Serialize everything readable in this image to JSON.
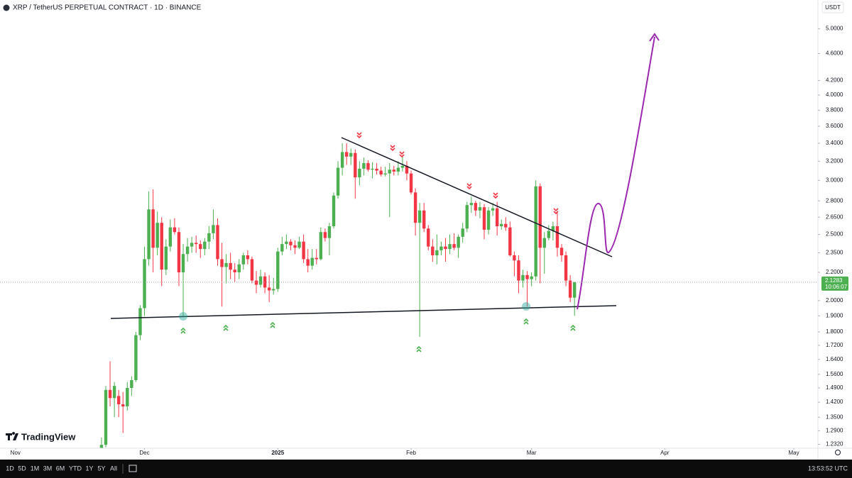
{
  "header": {
    "symbol": "XRP / TetherUS PERPETUAL CONTRACT · 1D · BINANCE",
    "currency": "USDT",
    "logo": "TradingView"
  },
  "toolbar": {
    "ranges": [
      "1D",
      "5D",
      "1M",
      "3M",
      "6M",
      "YTD",
      "1Y",
      "5Y",
      "All"
    ],
    "clock": "13:53:52 UTC"
  },
  "chart_data": {
    "type": "candlestick",
    "log": true,
    "grid": false,
    "up_color": "#4caf50",
    "down_color": "#f23645",
    "xlim": [
      -23.6,
      166.6
    ],
    "xticks": [
      {
        "value": -20,
        "label": "Nov"
      },
      {
        "value": 10,
        "label": "Dec"
      },
      {
        "value": 41,
        "label": "2025"
      },
      {
        "value": 72,
        "label": "Feb"
      },
      {
        "value": 100,
        "label": "Mar"
      },
      {
        "value": 131,
        "label": "Apr"
      },
      {
        "value": 161,
        "label": "May"
      }
    ],
    "ylim": [
      1.216,
      5.51
    ],
    "yticks": [
      {
        "value": 5,
        "label": "5.0000"
      },
      {
        "value": 4.6,
        "label": "4.6000"
      },
      {
        "value": 4.2,
        "label": "4.2000"
      },
      {
        "value": 4,
        "label": "4.0000"
      },
      {
        "value": 3.8,
        "label": "3.8000"
      },
      {
        "value": 3.6,
        "label": "3.6000"
      },
      {
        "value": 3.4,
        "label": "3.4000"
      },
      {
        "value": 3.2,
        "label": "3.2000"
      },
      {
        "value": 3,
        "label": "3.0000"
      },
      {
        "value": 2.8,
        "label": "2.8000"
      },
      {
        "value": 2.65,
        "label": "2.6500"
      },
      {
        "value": 2.5,
        "label": "2.5000"
      },
      {
        "value": 2.35,
        "label": "2.3500"
      },
      {
        "value": 2.2,
        "label": "2.2000"
      },
      {
        "value": 2,
        "label": "2.0000"
      },
      {
        "value": 1.9,
        "label": "1.9000"
      },
      {
        "value": 1.8,
        "label": "1.8000"
      },
      {
        "value": 1.72,
        "label": "1.7200"
      },
      {
        "value": 1.64,
        "label": "1.6400"
      },
      {
        "value": 1.56,
        "label": "1.5600"
      },
      {
        "value": 1.49,
        "label": "1.4900"
      },
      {
        "value": 1.42,
        "label": "1.4200"
      },
      {
        "value": 1.35,
        "label": "1.3500"
      },
      {
        "value": 1.29,
        "label": "1.2900"
      },
      {
        "value": 1.232,
        "label": "1.2320"
      }
    ],
    "last_price": {
      "value": 2.1283,
      "label": "2.1283"
    },
    "countdown": "10:06:07",
    "open": [
      1.12,
      1.23,
      1.48,
      1.44,
      1.45,
      1.41,
      1.4,
      1.49,
      1.53,
      1.78,
      1.95,
      2.3,
      2.72,
      2.39,
      2.6,
      2.22,
      2.4,
      2.56,
      2.52,
      2.2,
      2.34,
      2.4,
      2.43,
      2.42,
      2.38,
      2.44,
      2.51,
      2.58,
      2.3,
      2.24,
      2.27,
      2.22,
      2.2,
      2.26,
      2.33,
      2.3,
      2.14,
      2.11,
      2.17,
      2.09,
      2.07,
      2.08,
      2.36,
      2.42,
      2.44,
      2.41,
      2.39,
      2.44,
      2.3,
      2.25,
      2.31,
      2.3,
      2.52,
      2.47,
      2.57,
      2.85,
      3.13,
      3.3,
      3.25,
      3.29,
      3.03,
      3.12,
      3.18,
      3.11,
      3.12,
      3.1,
      3.06,
      3.07,
      3.11,
      3.09,
      3.13,
      3.15,
      3.07,
      2.88,
      2.6,
      2.71,
      2.55,
      2.4,
      2.33,
      2.37,
      2.4,
      2.38,
      2.42,
      2.39,
      2.48,
      2.55,
      2.76,
      2.78,
      2.71,
      2.74,
      2.54,
      2.71,
      2.73,
      2.57,
      2.59,
      2.56,
      2.33,
      2.29,
      2.14,
      2.18,
      2.15,
      2.17,
      2.94,
      2.39,
      2.47,
      2.53,
      2.57,
      2.39,
      2.33,
      2.14,
      2.02
    ],
    "high": [
      1.26,
      1.5,
      1.63,
      1.52,
      1.48,
      1.47,
      1.52,
      1.55,
      1.8,
      1.97,
      2.4,
      2.89,
      2.91,
      2.7,
      2.65,
      2.46,
      2.63,
      2.64,
      2.56,
      2.42,
      2.47,
      2.48,
      2.49,
      2.45,
      2.47,
      2.57,
      2.72,
      2.64,
      2.43,
      2.34,
      2.35,
      2.27,
      2.3,
      2.35,
      2.37,
      2.32,
      2.21,
      2.22,
      2.2,
      2.18,
      2.16,
      2.39,
      2.48,
      2.5,
      2.46,
      2.45,
      2.48,
      2.5,
      2.38,
      2.38,
      2.38,
      2.56,
      2.55,
      2.6,
      2.88,
      3.2,
      3.4,
      3.4,
      3.34,
      3.33,
      3.2,
      3.24,
      3.21,
      3.19,
      3.18,
      3.14,
      3.14,
      3.18,
      3.15,
      3.2,
      3.25,
      3.2,
      3.1,
      2.92,
      2.78,
      2.78,
      2.58,
      2.46,
      2.5,
      2.44,
      2.47,
      2.5,
      2.51,
      2.5,
      2.6,
      2.79,
      2.84,
      2.8,
      2.79,
      2.77,
      2.74,
      2.78,
      2.79,
      2.63,
      2.65,
      2.61,
      2.36,
      2.33,
      2.22,
      2.21,
      2.2,
      3.0,
      2.97,
      2.52,
      2.58,
      2.61,
      2.7,
      2.42,
      2.36,
      2.18,
      2.13
    ],
    "low": [
      1.1,
      1.22,
      1.4,
      1.35,
      1.35,
      1.28,
      1.38,
      1.45,
      1.52,
      1.75,
      1.9,
      2.25,
      2.2,
      2.33,
      2.1,
      2.18,
      2.36,
      2.5,
      2.1,
      1.9,
      2.28,
      2.35,
      2.35,
      2.31,
      2.33,
      2.38,
      2.46,
      2.25,
      1.96,
      2.12,
      2.15,
      2.13,
      2.15,
      2.22,
      2.26,
      2.12,
      2.05,
      2.09,
      2.05,
      1.99,
      2.04,
      2.06,
      2.33,
      2.38,
      2.37,
      2.34,
      2.38,
      2.27,
      2.2,
      2.22,
      2.26,
      2.29,
      2.44,
      2.33,
      2.55,
      2.82,
      3.05,
      3.16,
      3.16,
      2.82,
      2.95,
      3.05,
      3.09,
      3.02,
      3.06,
      3.04,
      3.04,
      2.65,
      3.05,
      3.05,
      3.09,
      3.0,
      2.86,
      2.49,
      1.77,
      2.52,
      2.37,
      2.28,
      2.26,
      2.33,
      2.28,
      2.34,
      2.37,
      2.31,
      2.43,
      2.52,
      2.69,
      2.66,
      2.64,
      2.46,
      2.5,
      2.66,
      2.49,
      2.54,
      2.53,
      2.32,
      2.17,
      2.05,
      2.09,
      1.96,
      2.1,
      2.14,
      2.12,
      2.19,
      2.45,
      2.45,
      2.32,
      2.28,
      2.1,
      1.99,
      1.9
    ],
    "close": [
      1.23,
      1.48,
      1.44,
      1.5,
      1.41,
      1.4,
      1.49,
      1.53,
      1.78,
      1.95,
      2.3,
      2.72,
      2.39,
      2.6,
      2.22,
      2.4,
      2.56,
      2.52,
      2.2,
      2.34,
      2.4,
      2.43,
      2.42,
      2.38,
      2.44,
      2.51,
      2.58,
      2.3,
      2.24,
      2.27,
      2.22,
      2.2,
      2.26,
      2.33,
      2.3,
      2.14,
      2.11,
      2.17,
      2.09,
      2.07,
      2.08,
      2.36,
      2.42,
      2.44,
      2.41,
      2.39,
      2.44,
      2.3,
      2.25,
      2.31,
      2.3,
      2.52,
      2.47,
      2.57,
      2.85,
      3.13,
      3.3,
      3.25,
      3.29,
      3.03,
      3.12,
      3.18,
      3.11,
      3.12,
      3.1,
      3.06,
      3.07,
      3.11,
      3.09,
      3.13,
      3.15,
      3.07,
      2.88,
      2.6,
      2.71,
      2.55,
      2.4,
      2.33,
      2.37,
      2.4,
      2.38,
      2.42,
      2.39,
      2.48,
      2.55,
      2.76,
      2.78,
      2.71,
      2.74,
      2.54,
      2.71,
      2.73,
      2.57,
      2.59,
      2.56,
      2.33,
      2.29,
      2.14,
      2.18,
      2.15,
      2.17,
      2.94,
      2.39,
      2.47,
      2.53,
      2.57,
      2.39,
      2.33,
      2.14,
      2.02,
      2.1283
    ]
  }
}
